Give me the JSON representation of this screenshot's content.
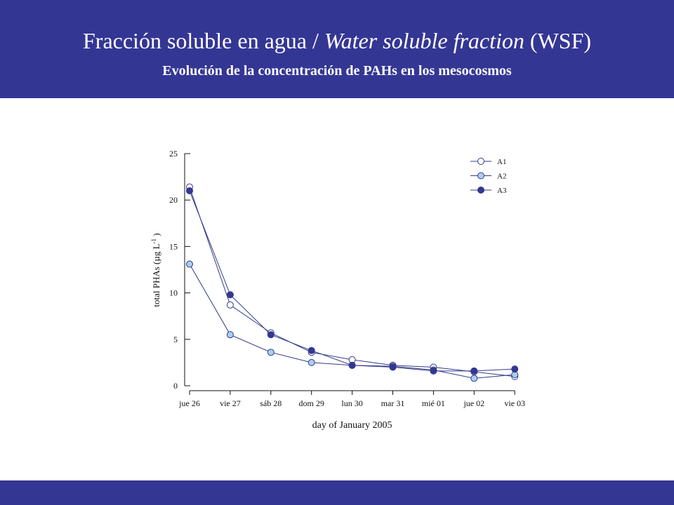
{
  "header": {
    "title_part1": "Fracción soluble en agua / ",
    "title_italic": "Water soluble fraction",
    "title_part2": " (WSF)",
    "subtitle": "Evolución de la concentración de PAHs en los mesocosmos"
  },
  "colors": {
    "band": "#343694",
    "a1_fill": "#ffffff",
    "a2_fill": "#a8d0ee",
    "a3_fill": "#343694",
    "line": "#333a8a"
  },
  "chart_data": {
    "type": "line",
    "title": "",
    "xlabel": "day of January 2005",
    "ylabel_main": "total PHAs (",
    "ylabel_unit": "µg L",
    "ylabel_sup": "-1",
    "ylabel_close": ")",
    "categories": [
      "jue 26",
      "vie 27",
      "sáb 28",
      "dom 29",
      "lun 30",
      "mar 31",
      "mié 01",
      "jue 02",
      "vie 03"
    ],
    "ylim": [
      0,
      25
    ],
    "yticks": [
      0,
      5,
      10,
      15,
      20,
      25
    ],
    "legend_position": "top-right",
    "grid": false,
    "series": [
      {
        "name": "A1",
        "marker": "open-circle",
        "values": [
          21.4,
          8.7,
          5.7,
          3.6,
          2.8,
          2.2,
          2.0,
          1.5,
          1.0
        ]
      },
      {
        "name": "A2",
        "marker": "light-blue-circle",
        "values": [
          13.1,
          5.5,
          3.6,
          2.5,
          2.2,
          2.1,
          1.7,
          0.8,
          1.2
        ]
      },
      {
        "name": "A3",
        "marker": "filled-circle",
        "values": [
          21.0,
          9.8,
          5.5,
          3.8,
          2.2,
          2.0,
          1.6,
          1.6,
          1.8
        ]
      }
    ]
  }
}
